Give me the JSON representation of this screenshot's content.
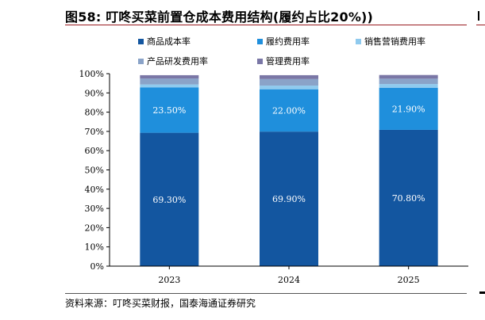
{
  "figure": {
    "title": "图58:  叮咚买菜前置仓成本费用结构(履约占比20%))",
    "source": "资料来源：叮咚买菜财报，国泰海通证券研究"
  },
  "colors": {
    "title_rule": "#9a1c20",
    "axis": "#000000"
  },
  "chart_data": {
    "type": "bar",
    "stacked": true,
    "categories": [
      "2023",
      "2024",
      "2025"
    ],
    "ylim": [
      0,
      100
    ],
    "ytick_labels": [
      "0%",
      "10%",
      "20%",
      "30%",
      "40%",
      "50%",
      "60%",
      "70%",
      "80%",
      "90%",
      "100%"
    ],
    "grid": false,
    "legend_position": "top",
    "series": [
      {
        "name": "商品成本率",
        "color": "#1356a0",
        "values": [
          69.3,
          69.9,
          70.8
        ],
        "labels": [
          "69.30%",
          "69.90%",
          "70.80%"
        ]
      },
      {
        "name": "履约费用率",
        "color": "#1f8fdc",
        "values": [
          23.5,
          22.0,
          21.9
        ],
        "labels": [
          "23.50%",
          "22.00%",
          "21.90%"
        ]
      },
      {
        "name": "销售营销费用率",
        "color": "#8fcaee",
        "values": [
          1.6,
          1.9,
          1.9
        ]
      },
      {
        "name": "产品研发费用率",
        "color": "#8aa3c8",
        "values": [
          3.1,
          3.4,
          2.8
        ]
      },
      {
        "name": "管理费用率",
        "color": "#7a77a6",
        "values": [
          1.7,
          2.0,
          1.9
        ]
      }
    ]
  }
}
